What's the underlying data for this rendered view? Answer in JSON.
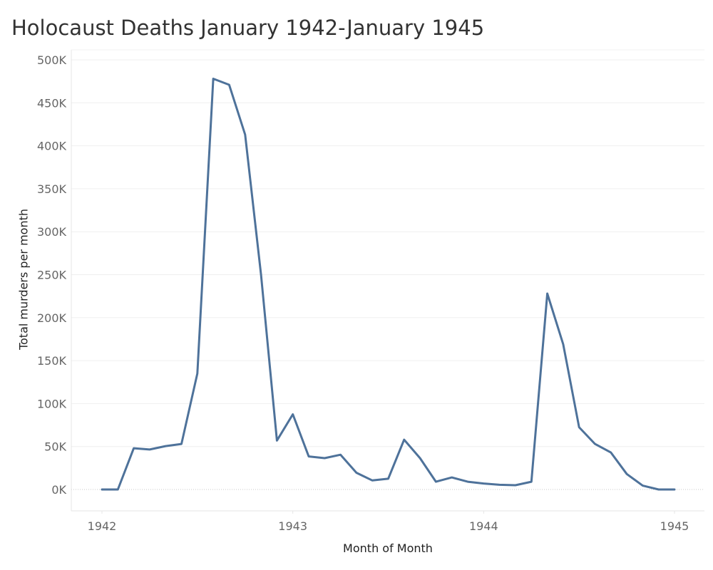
{
  "chart_data": {
    "type": "line",
    "title": "Holocaust Deaths January 1942-January 1945",
    "xlabel": "Month of Month",
    "ylabel": "Total murders per month",
    "x_ticks": [
      "1942",
      "1943",
      "1944",
      "1945"
    ],
    "y_ticks": [
      "0K",
      "50K",
      "100K",
      "150K",
      "200K",
      "250K",
      "300K",
      "350K",
      "400K",
      "450K",
      "500K"
    ],
    "ylim": [
      -25000,
      515000
    ],
    "xlim": [
      "1941-11",
      "1945-03"
    ],
    "grid": true,
    "series": [
      {
        "color": "#4e729a",
        "points": [
          {
            "x": "1942-01",
            "y": 0
          },
          {
            "x": "1942-02",
            "y": 0
          },
          {
            "x": "1942-03",
            "y": 48000
          },
          {
            "x": "1942-04",
            "y": 46500
          },
          {
            "x": "1942-05",
            "y": 50500
          },
          {
            "x": "1942-06",
            "y": 53000
          },
          {
            "x": "1942-07",
            "y": 135000
          },
          {
            "x": "1942-08",
            "y": 478000
          },
          {
            "x": "1942-09",
            "y": 471000
          },
          {
            "x": "1942-10",
            "y": 413000
          },
          {
            "x": "1942-11",
            "y": 250000
          },
          {
            "x": "1942-12",
            "y": 57000
          },
          {
            "x": "1943-01",
            "y": 87500
          },
          {
            "x": "1943-02",
            "y": 38500
          },
          {
            "x": "1943-03",
            "y": 36500
          },
          {
            "x": "1943-04",
            "y": 40500
          },
          {
            "x": "1943-05",
            "y": 19500
          },
          {
            "x": "1943-06",
            "y": 10500
          },
          {
            "x": "1943-07",
            "y": 12500
          },
          {
            "x": "1943-08",
            "y": 58000
          },
          {
            "x": "1943-09",
            "y": 36500
          },
          {
            "x": "1943-10",
            "y": 9000
          },
          {
            "x": "1943-11",
            "y": 14000
          },
          {
            "x": "1943-12",
            "y": 9000
          },
          {
            "x": "1944-01",
            "y": 7000
          },
          {
            "x": "1944-02",
            "y": 5500
          },
          {
            "x": "1944-03",
            "y": 5000
          },
          {
            "x": "1944-04",
            "y": 9000
          },
          {
            "x": "1944-05",
            "y": 228000
          },
          {
            "x": "1944-06",
            "y": 169000
          },
          {
            "x": "1944-07",
            "y": 72500
          },
          {
            "x": "1944-08",
            "y": 53000
          },
          {
            "x": "1944-09",
            "y": 43000
          },
          {
            "x": "1944-10",
            "y": 18000
          },
          {
            "x": "1944-11",
            "y": 4500
          },
          {
            "x": "1944-12",
            "y": 0
          },
          {
            "x": "1945-01",
            "y": 0
          }
        ]
      }
    ]
  }
}
